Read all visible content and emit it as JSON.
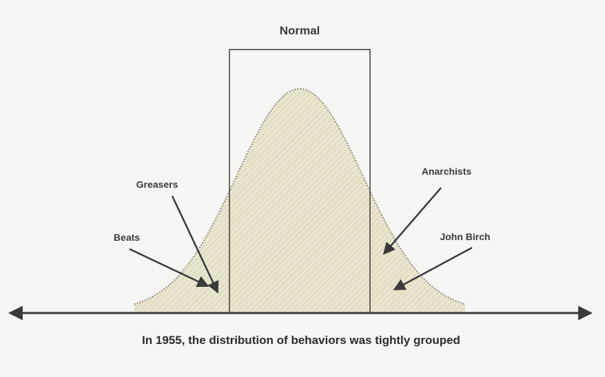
{
  "diagram": {
    "title": "Normal",
    "caption": "In 1955, the distribution of behaviors was tightly grouped",
    "labels": {
      "greasers": "Greasers",
      "beats": "Beats",
      "anarchists": "Anarchists",
      "john_birch": "John Birch"
    },
    "colors": {
      "background": "#f6f6f4",
      "curve_fill": "#e9e6cf",
      "hatch": "#cdc8a8",
      "curve_outline": "#777066",
      "ink": "#3a3a3a"
    }
  }
}
